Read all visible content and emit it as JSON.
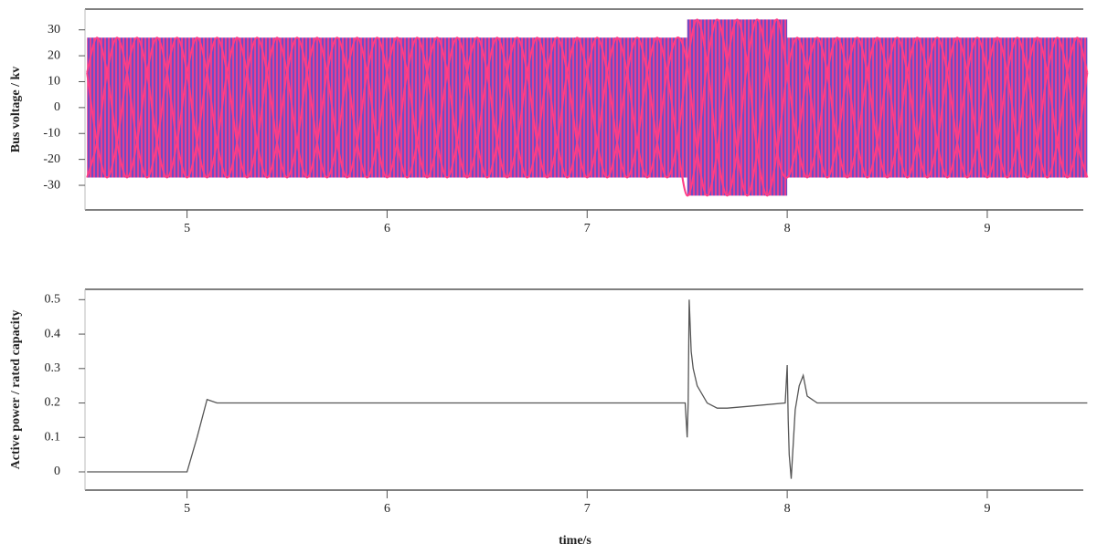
{
  "chart_data": [
    {
      "type": "line",
      "ylabel": "Bus voltage / kv",
      "xlim": [
        4.49,
        9.48
      ],
      "ylim": [
        -39.5,
        38
      ],
      "xticks": [
        5,
        6,
        7,
        8,
        9
      ],
      "yticks": [
        -30,
        -20,
        -10,
        0,
        10,
        20,
        30
      ],
      "band": {
        "color": "#6f4cc4",
        "x_start": [
          4.5,
          7.5,
          8
        ],
        "x_end": [
          7.5,
          8,
          9.5
        ],
        "upper": [
          27,
          34,
          27
        ],
        "lower": [
          -27,
          -34,
          -27
        ]
      },
      "x": [
        4.5,
        4.55,
        4.6,
        4.65,
        4.7,
        4.75,
        4.8,
        4.85,
        4.9,
        4.95,
        5,
        5.05,
        5.1,
        5.15,
        5.2,
        5.25,
        5.3,
        5.35,
        5.4,
        5.45,
        5.5,
        5.55,
        5.6,
        5.65,
        5.7,
        5.75,
        5.8,
        5.85,
        5.9,
        5.95,
        6,
        6.05,
        6.1,
        6.15,
        6.2,
        6.25,
        6.3,
        6.35,
        6.4,
        6.45,
        6.5,
        6.55,
        6.6,
        6.65,
        6.7,
        6.75,
        6.8,
        6.85,
        6.9,
        6.95,
        7,
        7.05,
        7.1,
        7.15,
        7.2,
        7.25,
        7.3,
        7.35,
        7.4,
        7.45,
        7.5,
        7.55,
        7.6,
        7.65,
        7.7,
        7.75,
        7.8,
        7.85,
        7.9,
        7.95,
        8,
        8.05,
        8.1,
        8.15,
        8.2,
        8.25,
        8.3,
        8.35,
        8.4,
        8.45,
        8.5,
        8.55,
        8.6,
        8.65,
        8.7,
        8.75,
        8.8,
        8.85,
        8.9,
        8.95,
        9,
        9.05,
        9.1,
        9.15,
        9.2,
        9.25,
        9.3,
        9.35,
        9.4,
        9.45,
        9.5
      ],
      "series": [
        {
          "color": "#ff3d86",
          "values": [
            13.5,
            27,
            13.5,
            -13.5,
            -27,
            -13.5,
            13.5,
            27,
            13.5,
            -13.5,
            -27,
            -13.5,
            13.5,
            27,
            13.5,
            -13.5,
            -27,
            -13.5,
            13.5,
            27,
            13.5,
            -13.5,
            -27,
            -13.5,
            13.5,
            27,
            13.5,
            -13.5,
            -27,
            -13.5,
            13.5,
            27,
            13.5,
            -13.5,
            -27,
            -13.5,
            13.5,
            27,
            13.5,
            -13.5,
            -27,
            -13.5,
            13.5,
            27,
            13.5,
            -13.5,
            -27,
            -13.5,
            13.5,
            27,
            13.5,
            -13.5,
            -27,
            -13.5,
            13.5,
            27,
            13.5,
            -13.5,
            -27,
            -13.5,
            17,
            34,
            17,
            -17,
            -34,
            -17,
            17,
            34,
            17,
            -17,
            -27,
            -13.5,
            13.5,
            27,
            13.5,
            -13.5,
            -27,
            -13.5,
            13.5,
            27,
            13.5,
            -13.5,
            -27,
            -13.5,
            13.5,
            27,
            13.5,
            -13.5,
            -27,
            -13.5,
            13.5,
            27,
            13.5,
            -13.5,
            -27,
            -13.5,
            13.5,
            27,
            13.5,
            -13.5,
            -27
          ]
        },
        {
          "color": "#ff3d86",
          "values": [
            13.5,
            -13.5,
            -27,
            -13.5,
            13.5,
            27,
            13.5,
            -13.5,
            -27,
            -13.5,
            13.5,
            27,
            13.5,
            -13.5,
            -27,
            -13.5,
            13.5,
            27,
            13.5,
            -13.5,
            -27,
            -13.5,
            13.5,
            27,
            13.5,
            -13.5,
            -27,
            -13.5,
            13.5,
            27,
            13.5,
            -13.5,
            -27,
            -13.5,
            13.5,
            27,
            13.5,
            -13.5,
            -27,
            -13.5,
            13.5,
            27,
            13.5,
            -13.5,
            -27,
            -13.5,
            13.5,
            27,
            13.5,
            -13.5,
            -27,
            -13.5,
            13.5,
            27,
            13.5,
            -13.5,
            -27,
            -13.5,
            13.5,
            27,
            17,
            -17,
            -34,
            -17,
            17,
            34,
            17,
            -17,
            -34,
            -17,
            13.5,
            27,
            13.5,
            -13.5,
            -27,
            -13.5,
            13.5,
            27,
            13.5,
            -13.5,
            -27,
            -13.5,
            13.5,
            27,
            13.5,
            -13.5,
            -27,
            -13.5,
            13.5,
            27,
            13.5,
            -13.5,
            -27,
            -13.5,
            13.5,
            27,
            13.5,
            -13.5,
            -27,
            -13.5,
            13.5
          ]
        },
        {
          "color": "#ff3d86",
          "values": [
            -27,
            -13.5,
            13.5,
            27,
            13.5,
            -13.5,
            -27,
            -13.5,
            13.5,
            27,
            13.5,
            -13.5,
            -27,
            -13.5,
            13.5,
            27,
            13.5,
            -13.5,
            -27,
            -13.5,
            13.5,
            27,
            13.5,
            -13.5,
            -27,
            -13.5,
            13.5,
            27,
            13.5,
            -13.5,
            -27,
            -13.5,
            13.5,
            27,
            13.5,
            -13.5,
            -27,
            -13.5,
            13.5,
            27,
            13.5,
            -13.5,
            -27,
            -13.5,
            13.5,
            27,
            13.5,
            -13.5,
            -27,
            -13.5,
            13.5,
            27,
            13.5,
            -13.5,
            -27,
            -13.5,
            13.5,
            27,
            13.5,
            -13.5,
            -34,
            -17,
            17,
            34,
            17,
            -17,
            -34,
            -17,
            17,
            34,
            13.5,
            -13.5,
            -27,
            -13.5,
            13.5,
            27,
            13.5,
            -13.5,
            -27,
            -13.5,
            13.5,
            27,
            13.5,
            -13.5,
            -27,
            -13.5,
            13.5,
            27,
            13.5,
            -13.5,
            -27,
            -13.5,
            13.5,
            27,
            13.5,
            -13.5,
            -27,
            -13.5,
            13.5,
            27,
            13.5
          ]
        }
      ]
    },
    {
      "type": "line",
      "ylabel": "Active power / rated capacity",
      "xlabel": "time/s",
      "xlim": [
        4.49,
        9.48
      ],
      "ylim": [
        -0.053,
        0.53
      ],
      "xticks": [
        5,
        6,
        7,
        8,
        9
      ],
      "yticks": [
        0,
        0.1,
        0.2,
        0.3,
        0.4,
        0.5
      ],
      "x": [
        4.5,
        5.0,
        5.05,
        5.1,
        5.15,
        5.2,
        7.49,
        7.5,
        7.505,
        7.51,
        7.52,
        7.53,
        7.55,
        7.6,
        7.65,
        7.7,
        7.8,
        7.99,
        8.0,
        8.005,
        8.01,
        8.02,
        8.04,
        8.06,
        8.08,
        8.1,
        8.15,
        8.2,
        9.5
      ],
      "series": [
        {
          "color": "#555555",
          "values": [
            0,
            0,
            0.1,
            0.21,
            0.2,
            0.2,
            0.2,
            0.1,
            0.2,
            0.5,
            0.35,
            0.3,
            0.25,
            0.2,
            0.185,
            0.185,
            0.19,
            0.2,
            0.31,
            0.15,
            0.05,
            -0.02,
            0.18,
            0.25,
            0.28,
            0.22,
            0.2,
            0.2,
            0.2
          ]
        }
      ]
    }
  ]
}
